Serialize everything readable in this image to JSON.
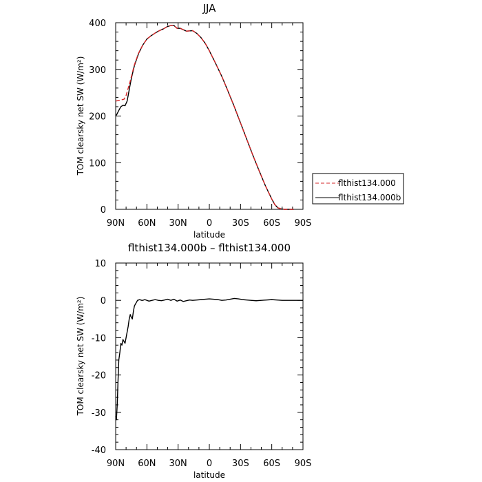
{
  "chart_data": [
    {
      "type": "line",
      "title": "JJA",
      "xlabel": "latitude",
      "ylabel": "TOM clearsky net SW (W/m²)",
      "xlim": [
        90,
        -90
      ],
      "ylim": [
        0,
        400
      ],
      "xticks": [
        {
          "v": 90,
          "label": "90N"
        },
        {
          "v": 60,
          "label": "60N"
        },
        {
          "v": 30,
          "label": "30N"
        },
        {
          "v": 0,
          "label": "0"
        },
        {
          "v": -30,
          "label": "30S"
        },
        {
          "v": -60,
          "label": "60S"
        },
        {
          "v": -90,
          "label": "90S"
        }
      ],
      "yticks": [
        0,
        100,
        200,
        300,
        400
      ],
      "legend_position": "right",
      "series": [
        {
          "name": "flthist134.000",
          "color": "#d62728",
          "dash": "dashed",
          "x": [
            90,
            88,
            84,
            82,
            80,
            76,
            72,
            68,
            64,
            60,
            56,
            52,
            48,
            44,
            40,
            37,
            34,
            31,
            28,
            22,
            16,
            12,
            8,
            4,
            0,
            -6,
            -12,
            -18,
            -24,
            -30,
            -36,
            -42,
            -48,
            -54,
            -60,
            -63,
            -66,
            -69,
            -72,
            -75,
            -78,
            -81
          ],
          "y": [
            232,
            233,
            235,
            236,
            244,
            275,
            310,
            335,
            352,
            365,
            372,
            378,
            383,
            387,
            392,
            394,
            394,
            388,
            388,
            382,
            383,
            377,
            368,
            356,
            340,
            313,
            285,
            253,
            220,
            185,
            150,
            115,
            82,
            50,
            22,
            10,
            3,
            1,
            0,
            0,
            0,
            0
          ]
        },
        {
          "name": "flthist134.000b",
          "color": "#000000",
          "dash": "solid",
          "x": [
            90,
            89,
            87,
            85,
            83,
            81,
            79,
            77,
            75,
            72,
            68,
            64,
            60,
            56,
            52,
            48,
            44,
            40,
            37,
            34,
            31,
            28,
            22,
            16,
            12,
            8,
            4,
            0,
            -6,
            -12,
            -18,
            -24,
            -30,
            -36,
            -42,
            -48,
            -54,
            -60,
            -63,
            -66,
            -69,
            -72,
            -75,
            -78,
            -81
          ],
          "y": [
            200,
            203,
            212,
            220,
            223,
            222,
            232,
            256,
            280,
            308,
            334,
            352,
            365,
            372,
            378,
            383,
            387,
            392,
            394,
            394,
            388,
            388,
            382,
            383,
            377,
            368,
            356,
            340,
            313,
            285,
            253,
            220,
            185,
            150,
            115,
            82,
            50,
            22,
            10,
            3,
            1,
            0,
            0,
            0,
            0
          ]
        }
      ]
    },
    {
      "type": "line",
      "title": "flthist134.000b – flthist134.000",
      "xlabel": "latitude",
      "ylabel": "TOM clearsky net SW (W/m²)",
      "xlim": [
        90,
        -90
      ],
      "ylim": [
        -40,
        10
      ],
      "xticks": [
        {
          "v": 90,
          "label": "90N"
        },
        {
          "v": 60,
          "label": "60N"
        },
        {
          "v": 30,
          "label": "30N"
        },
        {
          "v": 0,
          "label": "0"
        },
        {
          "v": -30,
          "label": "30S"
        },
        {
          "v": -60,
          "label": "60S"
        },
        {
          "v": -90,
          "label": "90S"
        }
      ],
      "yticks": [
        -40,
        -30,
        -20,
        -10,
        0,
        10
      ],
      "series": [
        {
          "color": "#000000",
          "dash": "solid",
          "x": [
            90,
            89.3,
            88.5,
            87.8,
            87,
            86,
            85,
            84,
            83,
            82,
            81,
            80,
            79,
            78,
            77,
            76,
            75,
            74,
            73,
            72,
            71,
            70,
            69,
            68,
            67,
            66,
            65,
            64,
            62,
            60,
            58,
            55,
            52,
            49,
            46,
            43,
            40,
            37,
            34,
            31,
            28,
            25,
            22,
            19,
            16,
            12,
            8,
            4,
            0,
            -4,
            -8,
            -12,
            -16,
            -20,
            -24,
            -28,
            -32,
            -36,
            -40,
            -45,
            -50,
            -55,
            -60,
            -65,
            -70,
            -75,
            -80,
            -90
          ],
          "y": [
            -31,
            -32,
            -28,
            -22,
            -16,
            -14,
            -11.5,
            -12,
            -10.5,
            -11,
            -11.5,
            -10,
            -8.5,
            -7,
            -5,
            -3.8,
            -4.5,
            -5,
            -3,
            -1.5,
            -1,
            -0.5,
            0,
            0.1,
            0.2,
            0.1,
            0,
            0,
            0.2,
            0,
            -0.2,
            0,
            0.2,
            0,
            -0.1,
            0.1,
            0.3,
            0,
            0.3,
            -0.2,
            0.1,
            -0.3,
            -0.1,
            0.1,
            0,
            0.1,
            0.2,
            0.3,
            0.4,
            0.3,
            0.2,
            0,
            0.1,
            0.3,
            0.5,
            0.4,
            0.2,
            0.1,
            0,
            -0.1,
            0,
            0.1,
            0.2,
            0.1,
            0,
            0,
            0,
            0
          ]
        }
      ]
    }
  ]
}
